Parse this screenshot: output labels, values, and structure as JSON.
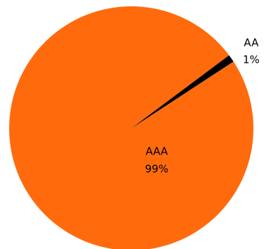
{
  "chart_data": {
    "type": "pie",
    "categories": [
      "AAA",
      "AA"
    ],
    "values": [
      99,
      1
    ],
    "value_labels": [
      "99%",
      "1%"
    ],
    "colors": [
      "#ff6a0d",
      "#000000"
    ]
  }
}
